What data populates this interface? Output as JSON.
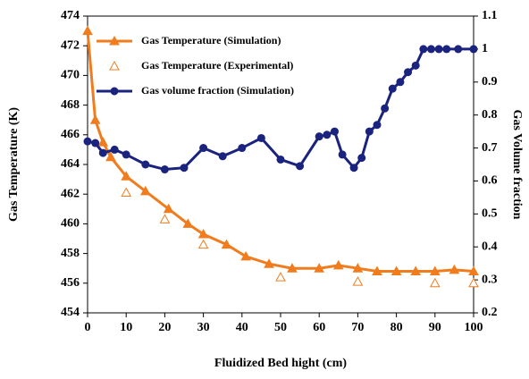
{
  "chart_data": {
    "type": "line",
    "xlabel": "Fluidized Bed hight (cm)",
    "ylabel": "Gas Temperature (K)",
    "y2label": "Gas Volume fraction",
    "xlim": [
      0,
      100
    ],
    "xticks": [
      0,
      10,
      20,
      30,
      40,
      50,
      60,
      70,
      80,
      90,
      100
    ],
    "ylim": [
      454,
      474
    ],
    "yticks": [
      454,
      456,
      458,
      460,
      462,
      464,
      466,
      468,
      470,
      472,
      474
    ],
    "y2lim": [
      0.2,
      1.1
    ],
    "y2ticks": [
      0.2,
      0.3,
      0.4,
      0.5,
      0.6,
      0.7,
      0.8,
      0.9,
      1,
      1.1
    ],
    "grid": false,
    "legend": "upper left",
    "series": [
      {
        "name": "Gas Temperature (Simulation)",
        "color": "#f07c1e",
        "marker": "triangle",
        "line": true,
        "x": [
          0,
          2,
          4,
          6,
          10,
          15,
          21,
          26,
          30,
          36,
          41,
          47,
          53,
          60,
          65,
          70,
          75,
          80,
          85,
          90,
          95,
          100
        ],
        "values": [
          473,
          467,
          465.5,
          464.5,
          463.2,
          462.2,
          461,
          460,
          459.3,
          458.6,
          457.8,
          457.3,
          457,
          457,
          457.2,
          457,
          456.8,
          456.8,
          456.8,
          456.8,
          456.9,
          456.8
        ]
      },
      {
        "name": "Gas Temperature (Experimental)",
        "color": "#f07c1e",
        "marker": "triangle-open",
        "line": false,
        "x": [
          10,
          20,
          30,
          50,
          70,
          90,
          100
        ],
        "values": [
          462.1,
          460.3,
          458.6,
          456.4,
          456.1,
          456,
          456
        ]
      },
      {
        "name": "Gas volume fraction (Simulation)",
        "color": "#1a237e",
        "marker": "circle",
        "line": true,
        "axis": "y2",
        "x": [
          0,
          2,
          4,
          7,
          10,
          15,
          20,
          25,
          30,
          35,
          40,
          45,
          50,
          55,
          60,
          62,
          64,
          66,
          69,
          71,
          73,
          75,
          77,
          79,
          81,
          83,
          85,
          87,
          89,
          91,
          93,
          96,
          100
        ],
        "values": [
          0.72,
          0.715,
          0.685,
          0.695,
          0.68,
          0.65,
          0.635,
          0.64,
          0.7,
          0.675,
          0.7,
          0.73,
          0.665,
          0.645,
          0.735,
          0.74,
          0.75,
          0.68,
          0.64,
          0.67,
          0.75,
          0.77,
          0.82,
          0.88,
          0.9,
          0.93,
          0.95,
          1,
          1,
          1,
          1,
          1,
          1
        ]
      }
    ]
  }
}
